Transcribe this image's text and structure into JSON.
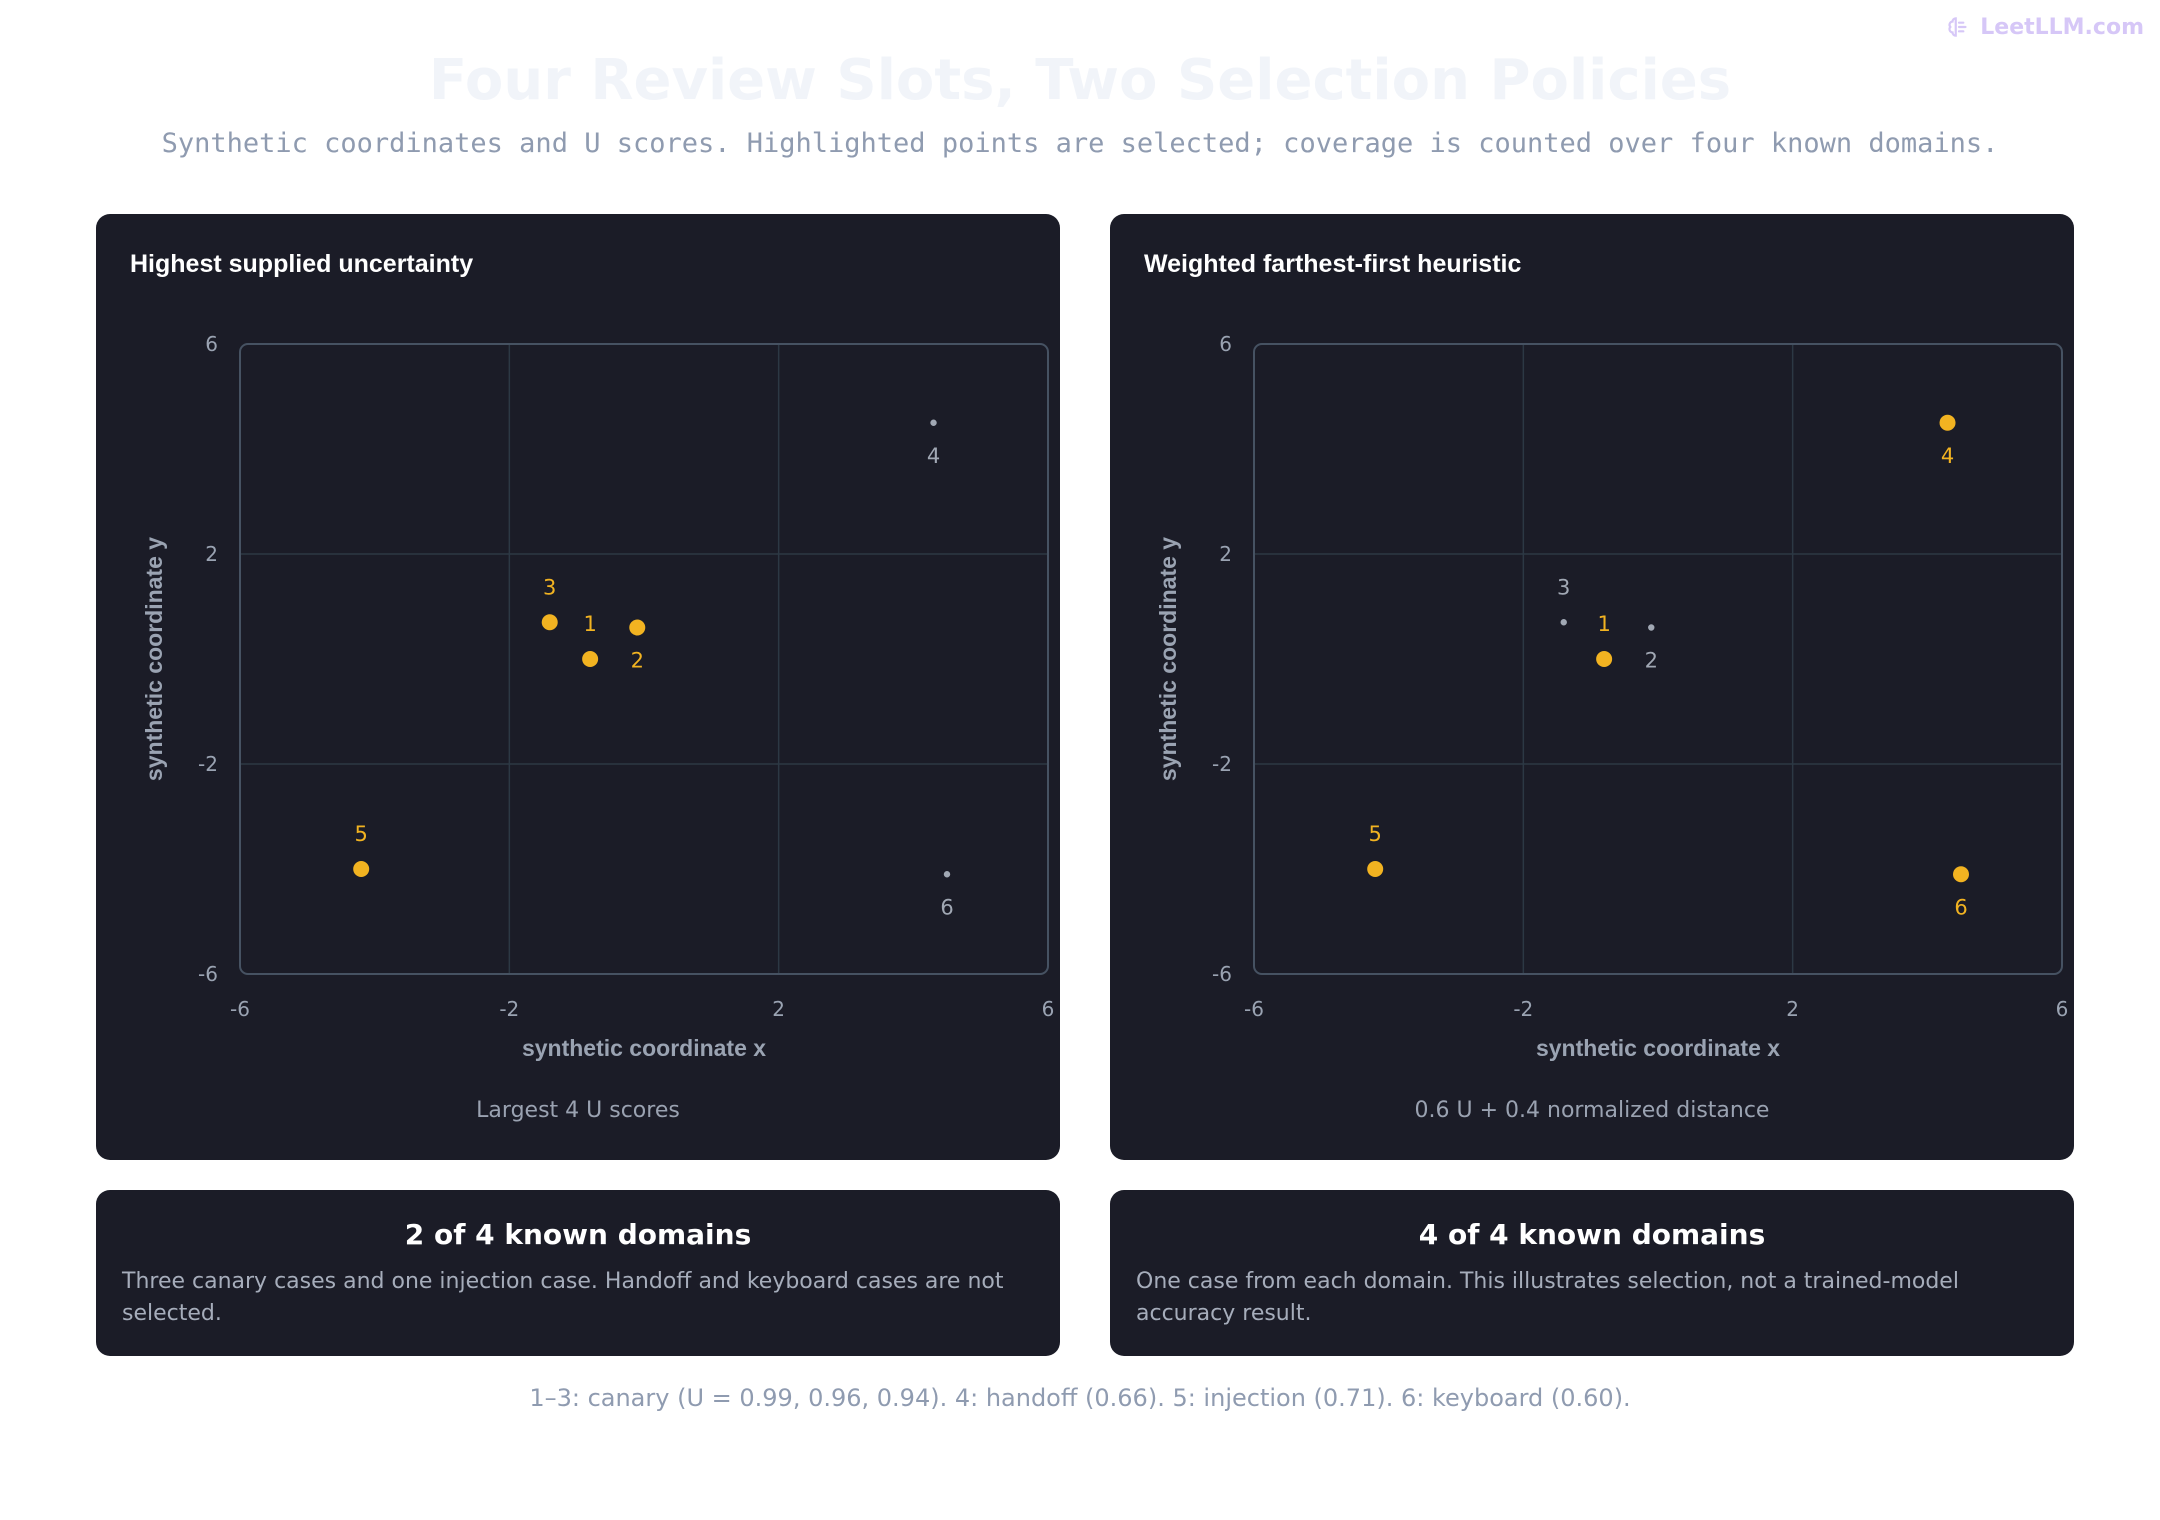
{
  "brand": {
    "name": "LeetLLM.com",
    "icon": "brain-icon"
  },
  "title": "Four Review Slots, Two Selection Policies",
  "subtitle": "Synthetic coordinates and U scores. Highlighted points are selected; coverage is counted over four known domains.",
  "colors": {
    "selected": "#f2b321",
    "unselected": "#a1a8b4",
    "panel": "#1b1c27",
    "grid": "#2c3844",
    "frame": "#465262"
  },
  "chart_data": [
    {
      "type": "scatter",
      "title": "Highest supplied uncertainty",
      "xlabel": "synthetic coordinate x",
      "ylabel": "synthetic coordinate y",
      "xlim": [
        -6,
        6
      ],
      "ylim": [
        -6,
        6
      ],
      "xticks": [
        -6,
        -2,
        2,
        6
      ],
      "yticks": [
        -6,
        -2,
        2,
        6
      ],
      "grid": true,
      "caption": "Largest 4 U scores",
      "points": [
        {
          "label": "1",
          "x": -0.8,
          "y": 0.0,
          "selected": true
        },
        {
          "label": "2",
          "x": -0.1,
          "y": 0.6,
          "selected": true
        },
        {
          "label": "3",
          "x": -1.4,
          "y": 0.7,
          "selected": true
        },
        {
          "label": "4",
          "x": 4.3,
          "y": 4.5,
          "selected": false
        },
        {
          "label": "5",
          "x": -4.2,
          "y": -4.0,
          "selected": true
        },
        {
          "label": "6",
          "x": 4.5,
          "y": -4.1,
          "selected": false
        }
      ]
    },
    {
      "type": "scatter",
      "title": "Weighted farthest-first heuristic",
      "xlabel": "synthetic coordinate x",
      "ylabel": "synthetic coordinate y",
      "xlim": [
        -6,
        6
      ],
      "ylim": [
        -6,
        6
      ],
      "xticks": [
        -6,
        -2,
        2,
        6
      ],
      "yticks": [
        -6,
        -2,
        2,
        6
      ],
      "grid": true,
      "caption": "0.6 U + 0.4 normalized distance",
      "points": [
        {
          "label": "1",
          "x": -0.8,
          "y": 0.0,
          "selected": true
        },
        {
          "label": "2",
          "x": -0.1,
          "y": 0.6,
          "selected": false
        },
        {
          "label": "3",
          "x": -1.4,
          "y": 0.7,
          "selected": false
        },
        {
          "label": "4",
          "x": 4.3,
          "y": 4.5,
          "selected": true
        },
        {
          "label": "5",
          "x": -4.2,
          "y": -4.0,
          "selected": true
        },
        {
          "label": "6",
          "x": 4.5,
          "y": -4.1,
          "selected": true
        }
      ]
    }
  ],
  "notes": [
    {
      "title": "2 of 4 known domains",
      "body": "Three canary cases and one injection case. Handoff and keyboard cases are not selected."
    },
    {
      "title": "4 of 4 known domains",
      "body": "One case from each domain. This illustrates selection, not a trained-model accuracy result."
    }
  ],
  "footer": "1–3: canary (U = 0.99, 0.96, 0.94). 4: handoff (0.66). 5: injection (0.71). 6: keyboard (0.60)."
}
